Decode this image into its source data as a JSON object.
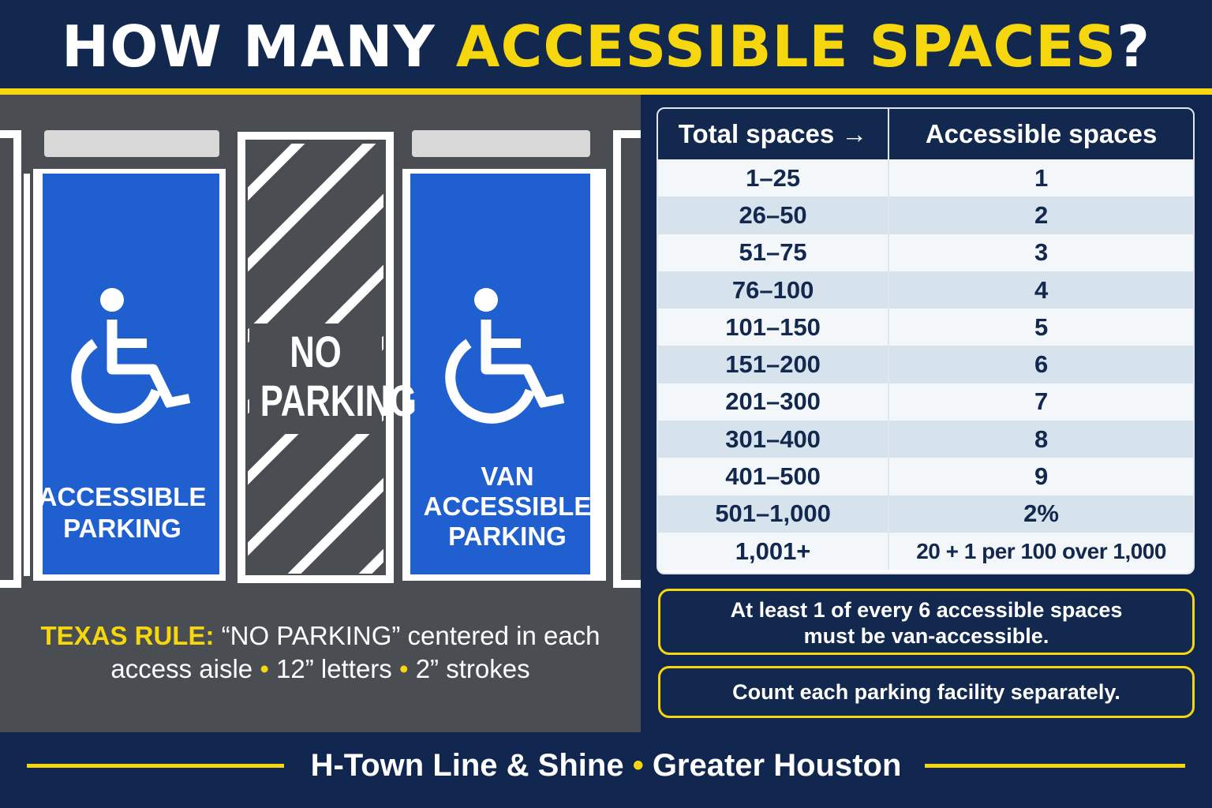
{
  "header": {
    "title_plain": "HOW MANY ",
    "title_accent": "ACCESSIBLE SPACES",
    "title_end": "?"
  },
  "lot": {
    "accessible_stall_line1": "ACCESSIBLE",
    "accessible_stall_line2": "PARKING",
    "aisle_line1": "NO",
    "aisle_line2": "PARKING",
    "van_stall_line1": "VAN",
    "van_stall_line2": "ACCESSIBLE",
    "van_stall_line3": "PARKING",
    "rule_label": "TEXAS RULE:",
    "rule_text1": " “NO PARKING” centered in each",
    "rule_text2a": "access aisle ",
    "rule_text2b": " 12” letters ",
    "rule_text2c": " 2” strokes",
    "bullet": "•"
  },
  "table": {
    "col1_header": "Total spaces →",
    "col2_header": "Accessible spaces",
    "rows": [
      {
        "total": "1–25",
        "accessible": "1"
      },
      {
        "total": "26–50",
        "accessible": "2"
      },
      {
        "total": "51–75",
        "accessible": "3"
      },
      {
        "total": "76–100",
        "accessible": "4"
      },
      {
        "total": "101–150",
        "accessible": "5"
      },
      {
        "total": "151–200",
        "accessible": "6"
      },
      {
        "total": "201–300",
        "accessible": "7"
      },
      {
        "total": "301–400",
        "accessible": "8"
      },
      {
        "total": "401–500",
        "accessible": "9"
      },
      {
        "total": "501–1,000",
        "accessible": "2%"
      },
      {
        "total": "1,001+",
        "accessible": "20 + 1 per 100 over 1,000"
      }
    ]
  },
  "notes": {
    "van_line1": "At least 1 of every 6 accessible spaces",
    "van_line2": "must be van-accessible.",
    "facility": "Count each parking facility separately."
  },
  "footer": {
    "left": "H-Town Line & Shine ",
    "bullet": "•",
    "right": " Greater Houston"
  },
  "colors": {
    "navy": "#12284f",
    "yellow": "#f6d60d",
    "stall_blue": "#1f5fcf",
    "asphalt": "#4a4d52"
  }
}
